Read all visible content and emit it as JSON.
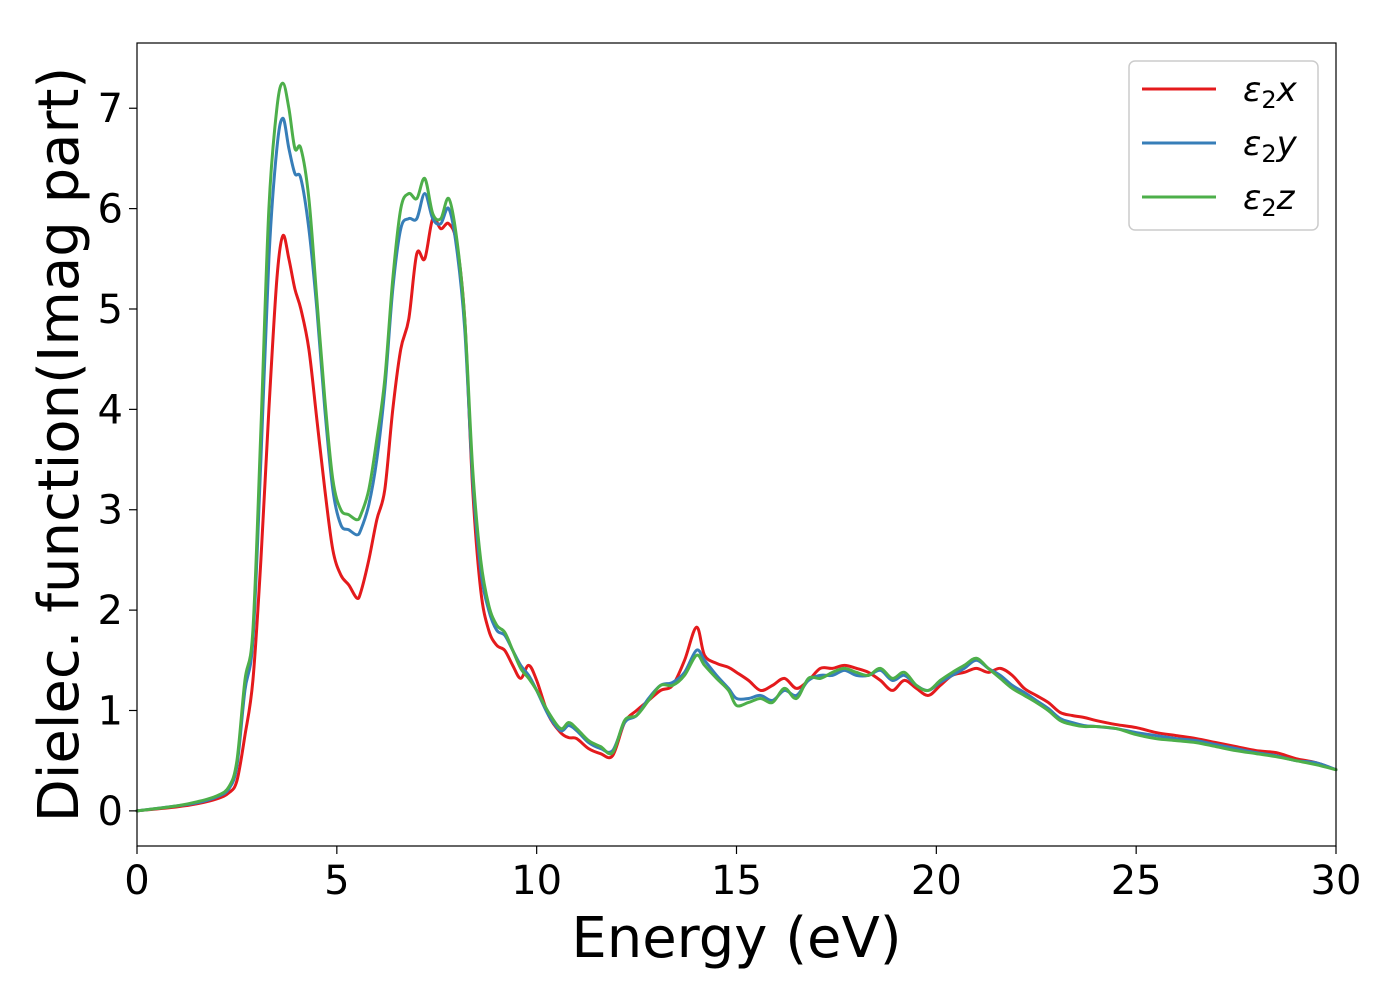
{
  "chart_data": {
    "type": "line",
    "title": "",
    "xlabel": "Energy (eV)",
    "ylabel": "Dielec. function(Imag part)",
    "xlim": [
      0,
      30
    ],
    "ylim": [
      -0.35,
      7.65
    ],
    "xticks": [
      0,
      5,
      10,
      15,
      20,
      25,
      30
    ],
    "yticks": [
      0,
      1,
      2,
      3,
      4,
      5,
      6,
      7
    ],
    "grid": false,
    "legend_position": "top-right",
    "series": [
      {
        "name": "ε₂x",
        "legend": {
          "base": "ε",
          "sub": "2",
          "suffix": "x"
        },
        "color": "#e41a1c",
        "x": [
          0,
          1,
          1.5,
          2,
          2.3,
          2.5,
          2.7,
          2.9,
          3.1,
          3.3,
          3.5,
          3.65,
          3.8,
          3.95,
          4.1,
          4.3,
          4.5,
          4.7,
          4.9,
          5.1,
          5.3,
          5.5,
          5.6,
          5.8,
          6.0,
          6.2,
          6.4,
          6.6,
          6.8,
          7.0,
          7.2,
          7.4,
          7.6,
          7.8,
          8.0,
          8.2,
          8.4,
          8.6,
          8.8,
          9.0,
          9.2,
          9.4,
          9.6,
          9.8,
          10.0,
          10.3,
          10.6,
          10.8,
          11.0,
          11.3,
          11.6,
          11.9,
          12.2,
          12.5,
          12.8,
          13.1,
          13.4,
          13.7,
          14.0,
          14.2,
          14.5,
          14.8,
          15.0,
          15.3,
          15.6,
          15.9,
          16.2,
          16.5,
          16.8,
          17.1,
          17.4,
          17.7,
          18.0,
          18.3,
          18.6,
          18.9,
          19.2,
          19.5,
          19.8,
          20.1,
          20.4,
          20.7,
          21.0,
          21.3,
          21.6,
          21.9,
          22.2,
          22.5,
          22.8,
          23.1,
          23.4,
          23.7,
          24.0,
          24.5,
          25.0,
          25.5,
          26.0,
          26.5,
          27.0,
          27.5,
          28.0,
          28.5,
          29.0,
          29.5,
          30.0
        ],
        "y": [
          0,
          0.04,
          0.07,
          0.12,
          0.18,
          0.3,
          0.75,
          1.3,
          2.5,
          4.0,
          5.3,
          5.73,
          5.5,
          5.2,
          5.0,
          4.6,
          3.9,
          3.2,
          2.6,
          2.35,
          2.25,
          2.12,
          2.18,
          2.5,
          2.9,
          3.2,
          4.0,
          4.6,
          4.9,
          5.55,
          5.5,
          5.9,
          5.8,
          5.85,
          5.65,
          4.9,
          3.2,
          2.2,
          1.8,
          1.65,
          1.6,
          1.45,
          1.32,
          1.45,
          1.3,
          0.95,
          0.78,
          0.73,
          0.72,
          0.62,
          0.57,
          0.55,
          0.88,
          1.0,
          1.1,
          1.2,
          1.25,
          1.5,
          1.83,
          1.55,
          1.47,
          1.43,
          1.38,
          1.3,
          1.2,
          1.25,
          1.32,
          1.22,
          1.3,
          1.42,
          1.42,
          1.45,
          1.42,
          1.38,
          1.3,
          1.2,
          1.3,
          1.22,
          1.15,
          1.25,
          1.35,
          1.38,
          1.42,
          1.38,
          1.42,
          1.35,
          1.22,
          1.15,
          1.08,
          0.98,
          0.95,
          0.93,
          0.9,
          0.86,
          0.83,
          0.78,
          0.75,
          0.72,
          0.68,
          0.64,
          0.6,
          0.58,
          0.52,
          0.48,
          0.41
        ]
      },
      {
        "name": "ε₂y",
        "legend": {
          "base": "ε",
          "sub": "2",
          "suffix": "y"
        },
        "color": "#377eb8",
        "x": [
          0,
          1,
          1.5,
          2,
          2.3,
          2.5,
          2.7,
          2.9,
          3.1,
          3.3,
          3.5,
          3.65,
          3.8,
          3.95,
          4.1,
          4.3,
          4.5,
          4.7,
          4.9,
          5.1,
          5.3,
          5.5,
          5.6,
          5.8,
          6.0,
          6.2,
          6.4,
          6.6,
          6.8,
          7.0,
          7.2,
          7.4,
          7.6,
          7.8,
          8.0,
          8.2,
          8.4,
          8.6,
          8.8,
          9.0,
          9.2,
          9.4,
          9.6,
          9.8,
          10.0,
          10.3,
          10.6,
          10.8,
          11.0,
          11.3,
          11.6,
          11.9,
          12.2,
          12.5,
          12.8,
          13.1,
          13.4,
          13.7,
          14.0,
          14.2,
          14.5,
          14.8,
          15.0,
          15.3,
          15.6,
          15.9,
          16.2,
          16.5,
          16.8,
          17.1,
          17.4,
          17.7,
          18.0,
          18.3,
          18.6,
          18.9,
          19.2,
          19.5,
          19.8,
          20.1,
          20.4,
          20.7,
          21.0,
          21.3,
          21.6,
          21.9,
          22.2,
          22.5,
          22.8,
          23.1,
          23.4,
          23.7,
          24.0,
          24.5,
          25.0,
          25.5,
          26.0,
          26.5,
          27.0,
          27.5,
          28.0,
          28.5,
          29.0,
          29.5,
          30.0
        ],
        "y": [
          0,
          0.05,
          0.08,
          0.14,
          0.22,
          0.45,
          1.2,
          1.7,
          3.5,
          5.5,
          6.6,
          6.9,
          6.6,
          6.35,
          6.3,
          5.8,
          5.0,
          4.0,
          3.2,
          2.85,
          2.8,
          2.75,
          2.8,
          3.05,
          3.5,
          4.2,
          5.2,
          5.8,
          5.9,
          5.9,
          6.15,
          5.9,
          5.85,
          6.0,
          5.6,
          4.8,
          3.3,
          2.4,
          2.0,
          1.8,
          1.75,
          1.6,
          1.45,
          1.35,
          1.2,
          0.95,
          0.8,
          0.85,
          0.8,
          0.68,
          0.62,
          0.6,
          0.88,
          0.95,
          1.12,
          1.25,
          1.28,
          1.38,
          1.6,
          1.5,
          1.35,
          1.22,
          1.12,
          1.12,
          1.15,
          1.1,
          1.2,
          1.15,
          1.3,
          1.35,
          1.35,
          1.4,
          1.35,
          1.35,
          1.4,
          1.3,
          1.35,
          1.25,
          1.2,
          1.28,
          1.35,
          1.42,
          1.5,
          1.42,
          1.35,
          1.25,
          1.18,
          1.1,
          1.02,
          0.92,
          0.88,
          0.85,
          0.84,
          0.82,
          0.78,
          0.75,
          0.72,
          0.7,
          0.66,
          0.62,
          0.58,
          0.55,
          0.5,
          0.48,
          0.41
        ]
      },
      {
        "name": "ε₂z",
        "legend": {
          "base": "ε",
          "sub": "2",
          "suffix": "z"
        },
        "color": "#4daf4a",
        "x": [
          0,
          1,
          1.5,
          2,
          2.3,
          2.5,
          2.7,
          2.9,
          3.1,
          3.3,
          3.5,
          3.65,
          3.8,
          3.95,
          4.1,
          4.3,
          4.5,
          4.7,
          4.9,
          5.1,
          5.3,
          5.5,
          5.6,
          5.8,
          6.0,
          6.2,
          6.4,
          6.6,
          6.8,
          7.0,
          7.2,
          7.4,
          7.6,
          7.8,
          8.0,
          8.2,
          8.4,
          8.6,
          8.8,
          9.0,
          9.2,
          9.4,
          9.6,
          9.8,
          10.0,
          10.3,
          10.6,
          10.8,
          11.0,
          11.3,
          11.6,
          11.9,
          12.2,
          12.5,
          12.8,
          13.1,
          13.4,
          13.7,
          14.0,
          14.2,
          14.5,
          14.8,
          15.0,
          15.3,
          15.6,
          15.9,
          16.2,
          16.5,
          16.8,
          17.1,
          17.4,
          17.7,
          18.0,
          18.3,
          18.6,
          18.9,
          19.2,
          19.5,
          19.8,
          20.1,
          20.4,
          20.7,
          21.0,
          21.3,
          21.6,
          21.9,
          22.2,
          22.5,
          22.8,
          23.1,
          23.4,
          23.7,
          24.0,
          24.5,
          25.0,
          25.5,
          26.0,
          26.5,
          27.0,
          27.5,
          28.0,
          28.5,
          29.0,
          29.5,
          30.0
        ],
        "y": [
          0,
          0.05,
          0.09,
          0.15,
          0.24,
          0.5,
          1.3,
          1.8,
          3.8,
          6.0,
          7.0,
          7.25,
          7.0,
          6.6,
          6.6,
          6.1,
          5.1,
          4.1,
          3.3,
          3.0,
          2.95,
          2.9,
          2.95,
          3.2,
          3.7,
          4.3,
          5.3,
          6.0,
          6.15,
          6.1,
          6.3,
          5.95,
          5.9,
          6.1,
          5.7,
          4.9,
          3.4,
          2.5,
          2.05,
          1.85,
          1.78,
          1.6,
          1.42,
          1.32,
          1.2,
          0.98,
          0.82,
          0.88,
          0.82,
          0.7,
          0.64,
          0.58,
          0.9,
          0.95,
          1.1,
          1.25,
          1.25,
          1.35,
          1.55,
          1.45,
          1.32,
          1.2,
          1.05,
          1.08,
          1.12,
          1.08,
          1.22,
          1.12,
          1.32,
          1.32,
          1.38,
          1.42,
          1.38,
          1.35,
          1.42,
          1.32,
          1.38,
          1.25,
          1.2,
          1.3,
          1.38,
          1.45,
          1.52,
          1.42,
          1.32,
          1.22,
          1.15,
          1.08,
          1.0,
          0.9,
          0.86,
          0.84,
          0.84,
          0.82,
          0.76,
          0.72,
          0.7,
          0.68,
          0.64,
          0.6,
          0.57,
          0.54,
          0.5,
          0.46,
          0.41
        ]
      }
    ]
  }
}
